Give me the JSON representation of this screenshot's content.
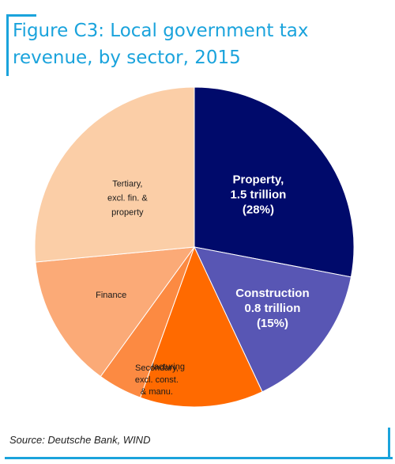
{
  "title": "Figure C3:  Local government tax revenue, by sector, 2015",
  "source": "Source: Deutsche Bank, WIND",
  "chart_data": {
    "type": "pie",
    "title": "Figure C3:  Local government tax revenue, by sector, 2015",
    "slices": [
      {
        "label_lines": [
          "Property,",
          "1.5 trillion",
          "(28%)"
        ],
        "value": 28,
        "color": "#000a6b",
        "text_color": "#ffffff",
        "bold": true
      },
      {
        "label_lines": [
          "Construction",
          "0.8 trillion",
          "(15%)"
        ],
        "value": 15,
        "color": "#5856b4",
        "text_color": "#ffffff",
        "bold": true
      },
      {
        "label_lines": [
          "Manufacturing"
        ],
        "value": 12.5,
        "color": "#ff6a00",
        "text_color": "#1a1a1a",
        "bold": false
      },
      {
        "label_lines": [
          "Secondary,",
          "excl. const.",
          "& manu."
        ],
        "value": 4.5,
        "color": "#fc8a42",
        "text_color": "#1a1a1a",
        "bold": false
      },
      {
        "label_lines": [
          "Finance"
        ],
        "value": 13.5,
        "color": "#fbaa77",
        "text_color": "#1a1a1a",
        "bold": false
      },
      {
        "label_lines": [
          "Tertiary,",
          "excl. fin. &",
          "property"
        ],
        "value": 26.5,
        "color": "#fbcea7",
        "text_color": "#1a1a1a",
        "bold": false
      }
    ],
    "start_angle_deg": 0,
    "direction": "clockwise"
  }
}
